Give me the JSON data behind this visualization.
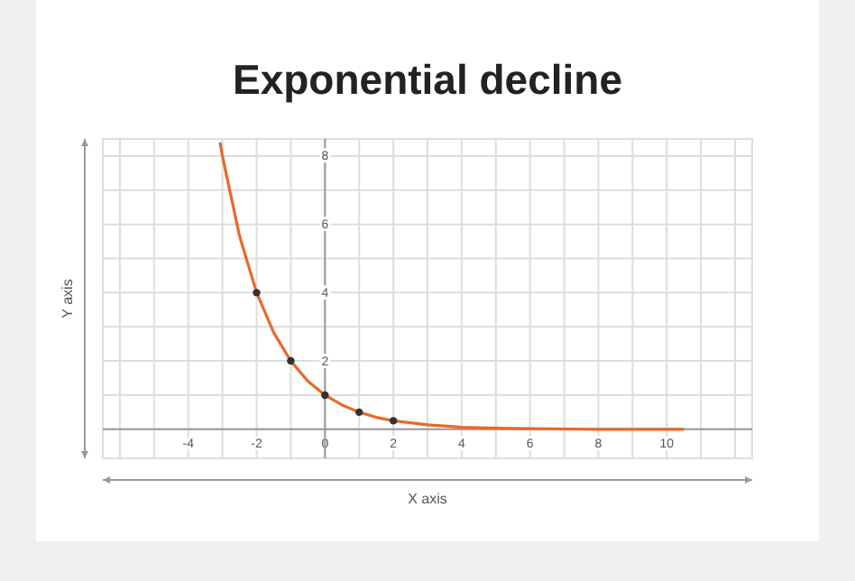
{
  "chart_data": {
    "type": "line",
    "title": "Exponential decline",
    "xlabel": "X axis",
    "ylabel": "Y axis",
    "xlim": [
      -6.5,
      12.5
    ],
    "ylim": [
      -0.85,
      8.5
    ],
    "xticks": [
      {
        "value": -6,
        "label": null
      },
      {
        "value": -5,
        "label": null
      },
      -4,
      {
        "value": -3,
        "label": null
      },
      -2,
      {
        "value": -1,
        "label": null
      },
      0,
      {
        "value": 1,
        "label": null
      },
      2,
      {
        "value": 3,
        "label": null
      },
      4,
      {
        "value": 5,
        "label": null
      },
      6,
      {
        "value": 7,
        "label": null
      },
      8,
      {
        "value": 9,
        "label": null
      },
      10,
      {
        "value": 11,
        "label": null
      },
      {
        "value": 12,
        "label": null
      }
    ],
    "yticks": [
      {
        "value": 0,
        "label": null
      },
      {
        "value": 1,
        "label": null
      },
      2,
      {
        "value": 3,
        "label": null
      },
      4,
      {
        "value": 5,
        "label": null
      },
      6,
      {
        "value": 7,
        "label": null
      },
      8
    ],
    "grid": true,
    "line_style": "solid",
    "series": [
      {
        "type": "line",
        "color": "#e8692a",
        "marker": "none",
        "x": [
          -3.07,
          -3,
          -2.5,
          -2,
          -1.5,
          -1,
          -0.5,
          0,
          0.5,
          1,
          1.5,
          2,
          3,
          4,
          5,
          6,
          8,
          10.5
        ],
        "values": [
          8.4,
          8,
          5.66,
          4,
          2.83,
          2,
          1.41,
          1,
          0.71,
          0.5,
          0.35,
          0.25,
          0.13,
          0.06,
          0.03,
          0.02,
          0,
          0
        ]
      },
      {
        "type": "scatter",
        "color": "#333333",
        "marker": "circle",
        "x": [
          -2,
          -1,
          0,
          1,
          2
        ],
        "values": [
          4,
          2,
          1,
          0.5,
          0.25
        ]
      }
    ]
  }
}
